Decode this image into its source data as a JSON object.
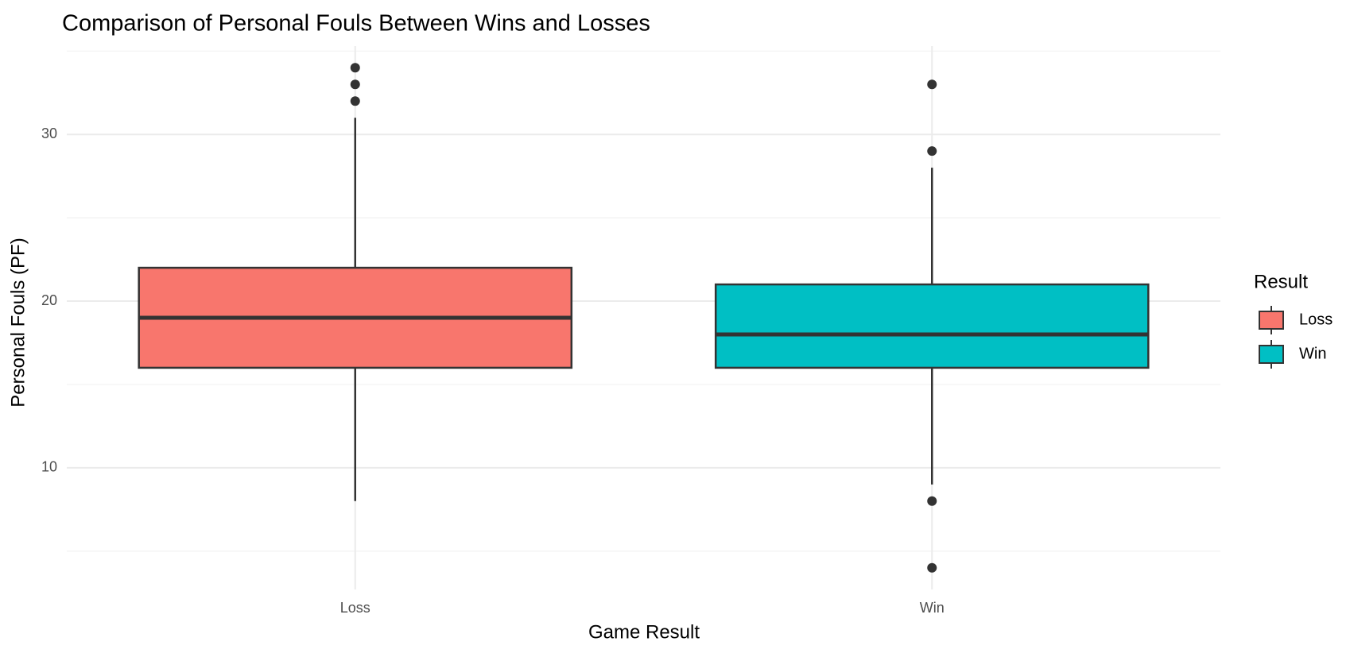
{
  "chart_data": {
    "type": "box",
    "title": "Comparison of Personal Fouls Between Wins and Losses",
    "x_label": "Game Result",
    "y_label": "Personal Fouls (PF)",
    "categories": [
      "Loss",
      "Win"
    ],
    "series": [
      {
        "name": "Loss",
        "color": "#F8766D",
        "min": 8,
        "q1": 16,
        "median": 19,
        "q3": 22,
        "max": 31,
        "outliers": [
          32,
          33,
          34
        ]
      },
      {
        "name": "Win",
        "color": "#00BFC4",
        "min": 9,
        "q1": 16,
        "median": 18,
        "q3": 21,
        "max": 28,
        "outliers": [
          33,
          29,
          8,
          4
        ]
      }
    ],
    "ylim": [
      2.7,
      35.3
    ],
    "yticks": [
      10,
      20,
      30
    ],
    "minor_yticks": [
      5,
      15,
      25,
      35
    ],
    "grid": true,
    "legend_title": "Result",
    "legend": "right"
  }
}
